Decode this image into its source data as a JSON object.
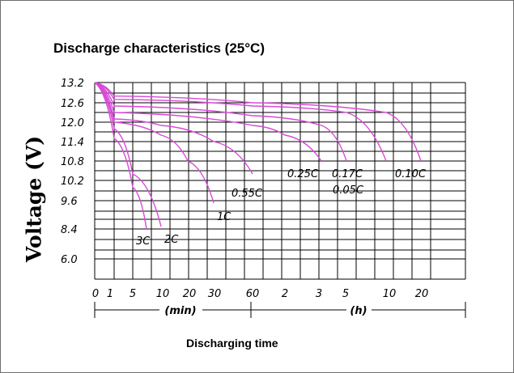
{
  "chart_data": {
    "type": "line",
    "title": "Discharge characteristics (25°C)",
    "xlabel": "Discharging time",
    "ylabel": "Voltage (V)",
    "x_ticks": [
      "0",
      "1",
      "5",
      "10",
      "20",
      "30",
      "60",
      "2",
      "3",
      "5",
      "10",
      "20"
    ],
    "x_unit_labels": [
      "(min)",
      "(h)"
    ],
    "y_ticks": [
      "13.2",
      "12.6",
      "12.0",
      "11.4",
      "10.8",
      "10.2",
      "9.6",
      "8.4",
      "6.0"
    ],
    "grid": true,
    "line_color": "#d84ad8",
    "series": [
      {
        "name": "3C",
        "x": [
          "0",
          "1",
          "5",
          "7"
        ],
        "y": [
          13.2,
          11.5,
          10.0,
          8.4
        ]
      },
      {
        "name": "2C",
        "x": [
          "0",
          "1",
          "5",
          "10"
        ],
        "y": [
          13.2,
          11.8,
          10.4,
          8.5
        ]
      },
      {
        "name": "1C",
        "x": [
          "0",
          "1",
          "10",
          "20",
          "30"
        ],
        "y": [
          13.2,
          12.0,
          11.6,
          10.8,
          9.5
        ]
      },
      {
        "name": "0.55C",
        "x": [
          "0",
          "1",
          "10",
          "30",
          "60"
        ],
        "y": [
          13.2,
          12.1,
          11.9,
          11.4,
          10.4
        ]
      },
      {
        "name": "0.25C",
        "x": [
          "0",
          "1",
          "60",
          "2h",
          "3h"
        ],
        "y": [
          13.2,
          12.3,
          11.9,
          11.6,
          10.8
        ]
      },
      {
        "name": "0.17C",
        "x": [
          "0",
          "1",
          "60",
          "3h",
          "5h"
        ],
        "y": [
          13.2,
          12.5,
          12.2,
          11.9,
          10.8
        ]
      },
      {
        "name": "0.05C",
        "x": [
          "0",
          "1",
          "60",
          "5h",
          "10h"
        ],
        "y": [
          13.2,
          12.7,
          12.5,
          12.3,
          10.8
        ]
      },
      {
        "name": "0.10C",
        "x": [
          "0",
          "1",
          "60",
          "10h",
          "20h"
        ],
        "y": [
          13.2,
          12.8,
          12.6,
          12.3,
          10.8
        ]
      }
    ]
  }
}
